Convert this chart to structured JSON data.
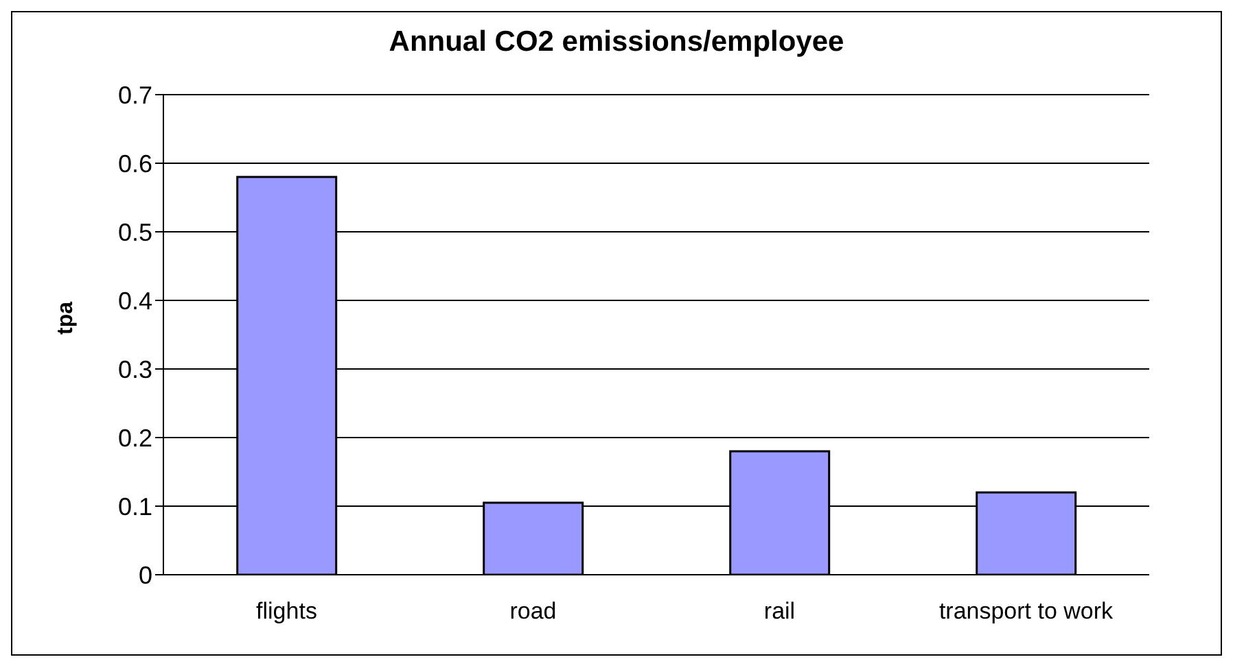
{
  "chart_data": {
    "type": "bar",
    "title": "Annual CO2 emissions/employee",
    "ylabel": "tpa",
    "categories": [
      "flights",
      "road",
      "rail",
      "transport to work"
    ],
    "values": [
      0.58,
      0.105,
      0.18,
      0.12
    ],
    "color": "#9999ff",
    "ylim": [
      0,
      0.7
    ],
    "yticks": [
      0,
      0.1,
      0.2,
      0.3,
      0.4,
      0.5,
      0.6,
      0.7
    ],
    "grid": "y",
    "legend": false
  }
}
